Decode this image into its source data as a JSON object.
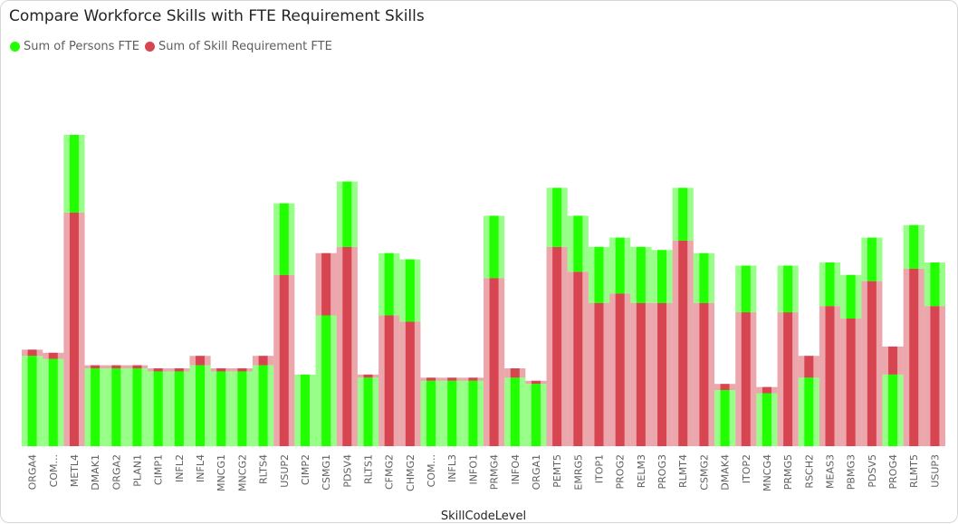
{
  "chart_data": {
    "type": "bar",
    "title": "Compare Workforce Skills with FTE Requirement Skills",
    "xlabel": "SkillCodeLevel",
    "ylabel": "",
    "ylim": [
      0,
      75
    ],
    "legend_placement": "top-left",
    "categories": [
      "ORGA4",
      "COM...",
      "METL4",
      "DMAK1",
      "ORGA2",
      "PLAN1",
      "CIMP1",
      "INFL2",
      "INFL4",
      "MNCG1",
      "MNCG2",
      "RLTS4",
      "USUP2",
      "CIMP2",
      "CSMG1",
      "PDSV4",
      "RLTS1",
      "CFMG2",
      "CHMG2",
      "COM...",
      "INFL3",
      "INFO1",
      "PRMG4",
      "INFO4",
      "ORGA1",
      "PEMT5",
      "EMRG5",
      "ITOP1",
      "PROG2",
      "RELM3",
      "PROG3",
      "RLMT4",
      "CSMG2",
      "DMAK4",
      "ITOP2",
      "MNCG4",
      "PRMG5",
      "RSCH2",
      "MEAS3",
      "PBMG3",
      "PDSV5",
      "PROG4",
      "RLMT5",
      "USUP3"
    ],
    "series": [
      {
        "name": "Sum of Persons FTE",
        "color": "#22ff00",
        "values": [
          29,
          28,
          25,
          25,
          25,
          25,
          24,
          24,
          26,
          24,
          24,
          26,
          23,
          23,
          42,
          21,
          22,
          20,
          20,
          21,
          21,
          21,
          20,
          22,
          20,
          19,
          18,
          18,
          18,
          18,
          17,
          17,
          16,
          18,
          15,
          17,
          15,
          22,
          14,
          14,
          14,
          23,
          14,
          14
        ]
      },
      {
        "name": "Sum of Skill Requirement FTE",
        "color": "#d64550",
        "values": [
          2,
          2,
          75,
          1,
          1,
          1,
          1,
          1,
          3,
          1,
          1,
          3,
          55,
          0,
          20,
          64,
          1,
          42,
          40,
          1,
          1,
          1,
          54,
          3,
          1,
          64,
          56,
          46,
          49,
          46,
          46,
          66,
          46,
          2,
          43,
          2,
          43,
          7,
          45,
          41,
          53,
          9,
          57,
          45
        ]
      }
    ]
  }
}
